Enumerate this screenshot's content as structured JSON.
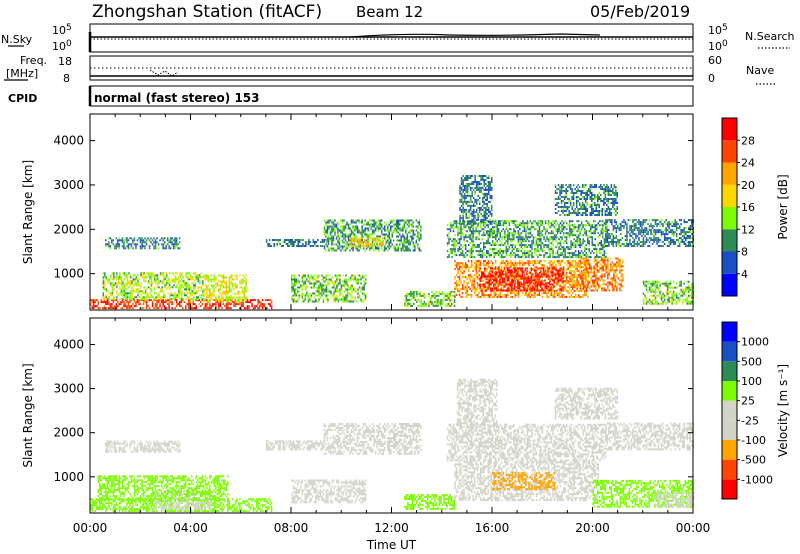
{
  "header": {
    "station": "Zhongshan Station (fitACF)",
    "beam": "Beam 12",
    "date": "05/Feb/2019"
  },
  "strip_labels": {
    "nsky": "N.Sky",
    "nsky_lo": "10^0",
    "nsky_hi": "10^5",
    "nsearch": "N.Search",
    "nsearch_lo": "10^0",
    "nsearch_hi": "10^5",
    "freq_title": "Freq.",
    "freq_unit": "[MHz]",
    "freq_hi": "18",
    "freq_lo": "8",
    "nave": "Nave",
    "nave_hi": "60",
    "nave_lo": "0",
    "cpid": "CPID",
    "cpid_value": "normal (fast stereo) 153"
  },
  "x_axis": {
    "label": "Time UT",
    "ticks": [
      "00:00",
      "04:00",
      "08:00",
      "12:00",
      "16:00",
      "20:00",
      "00:00"
    ]
  },
  "range_ticks": [
    "1000",
    "2000",
    "3000",
    "4000"
  ],
  "colors": {
    "ink": "#000000",
    "power_scale": [
      "#0000ff",
      "#1b4fc4",
      "#2e8b57",
      "#7cfc00",
      "#ffd700",
      "#ffa500",
      "#ff4500",
      "#ff0000"
    ],
    "velocity_scale": [
      "#ff0000",
      "#ff4500",
      "#ffa500",
      "#d3d3c8",
      "#d3d3c8",
      "#7cfc00",
      "#2e8b57",
      "#1b4fc4",
      "#0000ff"
    ]
  },
  "chart_data": [
    {
      "type": "heatmap",
      "panel": "power",
      "xlabel": "Time UT",
      "ylabel": "Slant Range [km]",
      "xlim_hours": [
        0,
        24
      ],
      "ylim_km": [
        180,
        4600
      ],
      "colorbar": {
        "label": "Power [dB]",
        "ticks": [
          "4",
          "8",
          "12",
          "16",
          "20",
          "24",
          "28"
        ],
        "range": [
          0,
          30
        ]
      },
      "regions": [
        {
          "t0": 0.0,
          "t1": 7.2,
          "r0": 200,
          "r1": 420,
          "value": 26
        },
        {
          "t0": 0.5,
          "t1": 4.5,
          "r0": 400,
          "r1": 1000,
          "value": 14
        },
        {
          "t0": 4.5,
          "t1": 6.2,
          "r0": 350,
          "r1": 950,
          "value": 16
        },
        {
          "t0": 0.6,
          "t1": 3.6,
          "r0": 1550,
          "r1": 1800,
          "value": 8
        },
        {
          "t0": 7.0,
          "t1": 9.5,
          "r0": 1600,
          "r1": 1750,
          "value": 8
        },
        {
          "t0": 9.3,
          "t1": 13.2,
          "r0": 1500,
          "r1": 2200,
          "value": 10
        },
        {
          "t0": 10.3,
          "t1": 11.8,
          "r0": 1600,
          "r1": 1800,
          "value": 18
        },
        {
          "t0": 8.0,
          "t1": 11.0,
          "r0": 350,
          "r1": 950,
          "value": 12
        },
        {
          "t0": 12.5,
          "t1": 14.5,
          "r0": 250,
          "r1": 600,
          "value": 12
        },
        {
          "t0": 14.2,
          "t1": 20.5,
          "r0": 1350,
          "r1": 2200,
          "value": 10
        },
        {
          "t0": 14.5,
          "t1": 19.8,
          "r0": 450,
          "r1": 1300,
          "value": 21
        },
        {
          "t0": 15.5,
          "t1": 18.8,
          "r0": 600,
          "r1": 1100,
          "value": 28
        },
        {
          "t0": 19.5,
          "t1": 21.2,
          "r0": 600,
          "r1": 1350,
          "value": 22
        },
        {
          "t0": 14.7,
          "t1": 16.0,
          "r0": 2100,
          "r1": 3200,
          "value": 8
        },
        {
          "t0": 18.5,
          "t1": 21.0,
          "r0": 2300,
          "r1": 3000,
          "value": 8
        },
        {
          "t0": 20.5,
          "t1": 24.0,
          "r0": 1600,
          "r1": 2200,
          "value": 8
        },
        {
          "t0": 22.0,
          "t1": 24.0,
          "r0": 300,
          "r1": 800,
          "value": 12
        }
      ]
    },
    {
      "type": "heatmap",
      "panel": "velocity",
      "xlabel": "Time UT",
      "ylabel": "Slant Range [km]",
      "xlim_hours": [
        0,
        24
      ],
      "ylim_km": [
        180,
        4600
      ],
      "colorbar": {
        "label": "Velocity [m s⁻¹]",
        "ticks": [
          "-1000",
          "-500",
          "-100",
          "-25",
          "25",
          "100",
          "500",
          "1000"
        ],
        "range": [
          -1300,
          1300
        ]
      },
      "regions": [
        {
          "t0": 0.0,
          "t1": 7.2,
          "r0": 200,
          "r1": 500,
          "value": 200
        },
        {
          "t0": 2.5,
          "t1": 4.8,
          "r0": 250,
          "r1": 700,
          "value": -300
        },
        {
          "t0": 0.3,
          "t1": 5.5,
          "r0": 450,
          "r1": 1000,
          "value": 300
        },
        {
          "t0": 0.6,
          "t1": 3.6,
          "r0": 1550,
          "r1": 1800,
          "value": 0
        },
        {
          "t0": 7.0,
          "t1": 9.5,
          "r0": 1600,
          "r1": 1800,
          "value": 0
        },
        {
          "t0": 9.3,
          "t1": 13.2,
          "r0": 1500,
          "r1": 2200,
          "value": 0
        },
        {
          "t0": 8.0,
          "t1": 11.0,
          "r0": 400,
          "r1": 900,
          "value": -200
        },
        {
          "t0": 12.5,
          "t1": 14.5,
          "r0": 250,
          "r1": 600,
          "value": 150
        },
        {
          "t0": 14.2,
          "t1": 20.5,
          "r0": 1350,
          "r1": 2200,
          "value": 0
        },
        {
          "t0": 14.5,
          "t1": 20.2,
          "r0": 450,
          "r1": 1350,
          "value": -300
        },
        {
          "t0": 16.0,
          "t1": 18.5,
          "r0": 700,
          "r1": 1100,
          "value": -600
        },
        {
          "t0": 14.6,
          "t1": 16.2,
          "r0": 2100,
          "r1": 3200,
          "value": 0
        },
        {
          "t0": 18.5,
          "t1": 21.0,
          "r0": 2300,
          "r1": 3000,
          "value": 0
        },
        {
          "t0": 20.5,
          "t1": 24.0,
          "r0": 1600,
          "r1": 2200,
          "value": 0
        },
        {
          "t0": 20.0,
          "t1": 24.0,
          "r0": 300,
          "r1": 900,
          "value": 200
        },
        {
          "t0": 22.5,
          "t1": 24.0,
          "r0": 300,
          "r1": 650,
          "value": -300
        }
      ]
    }
  ]
}
